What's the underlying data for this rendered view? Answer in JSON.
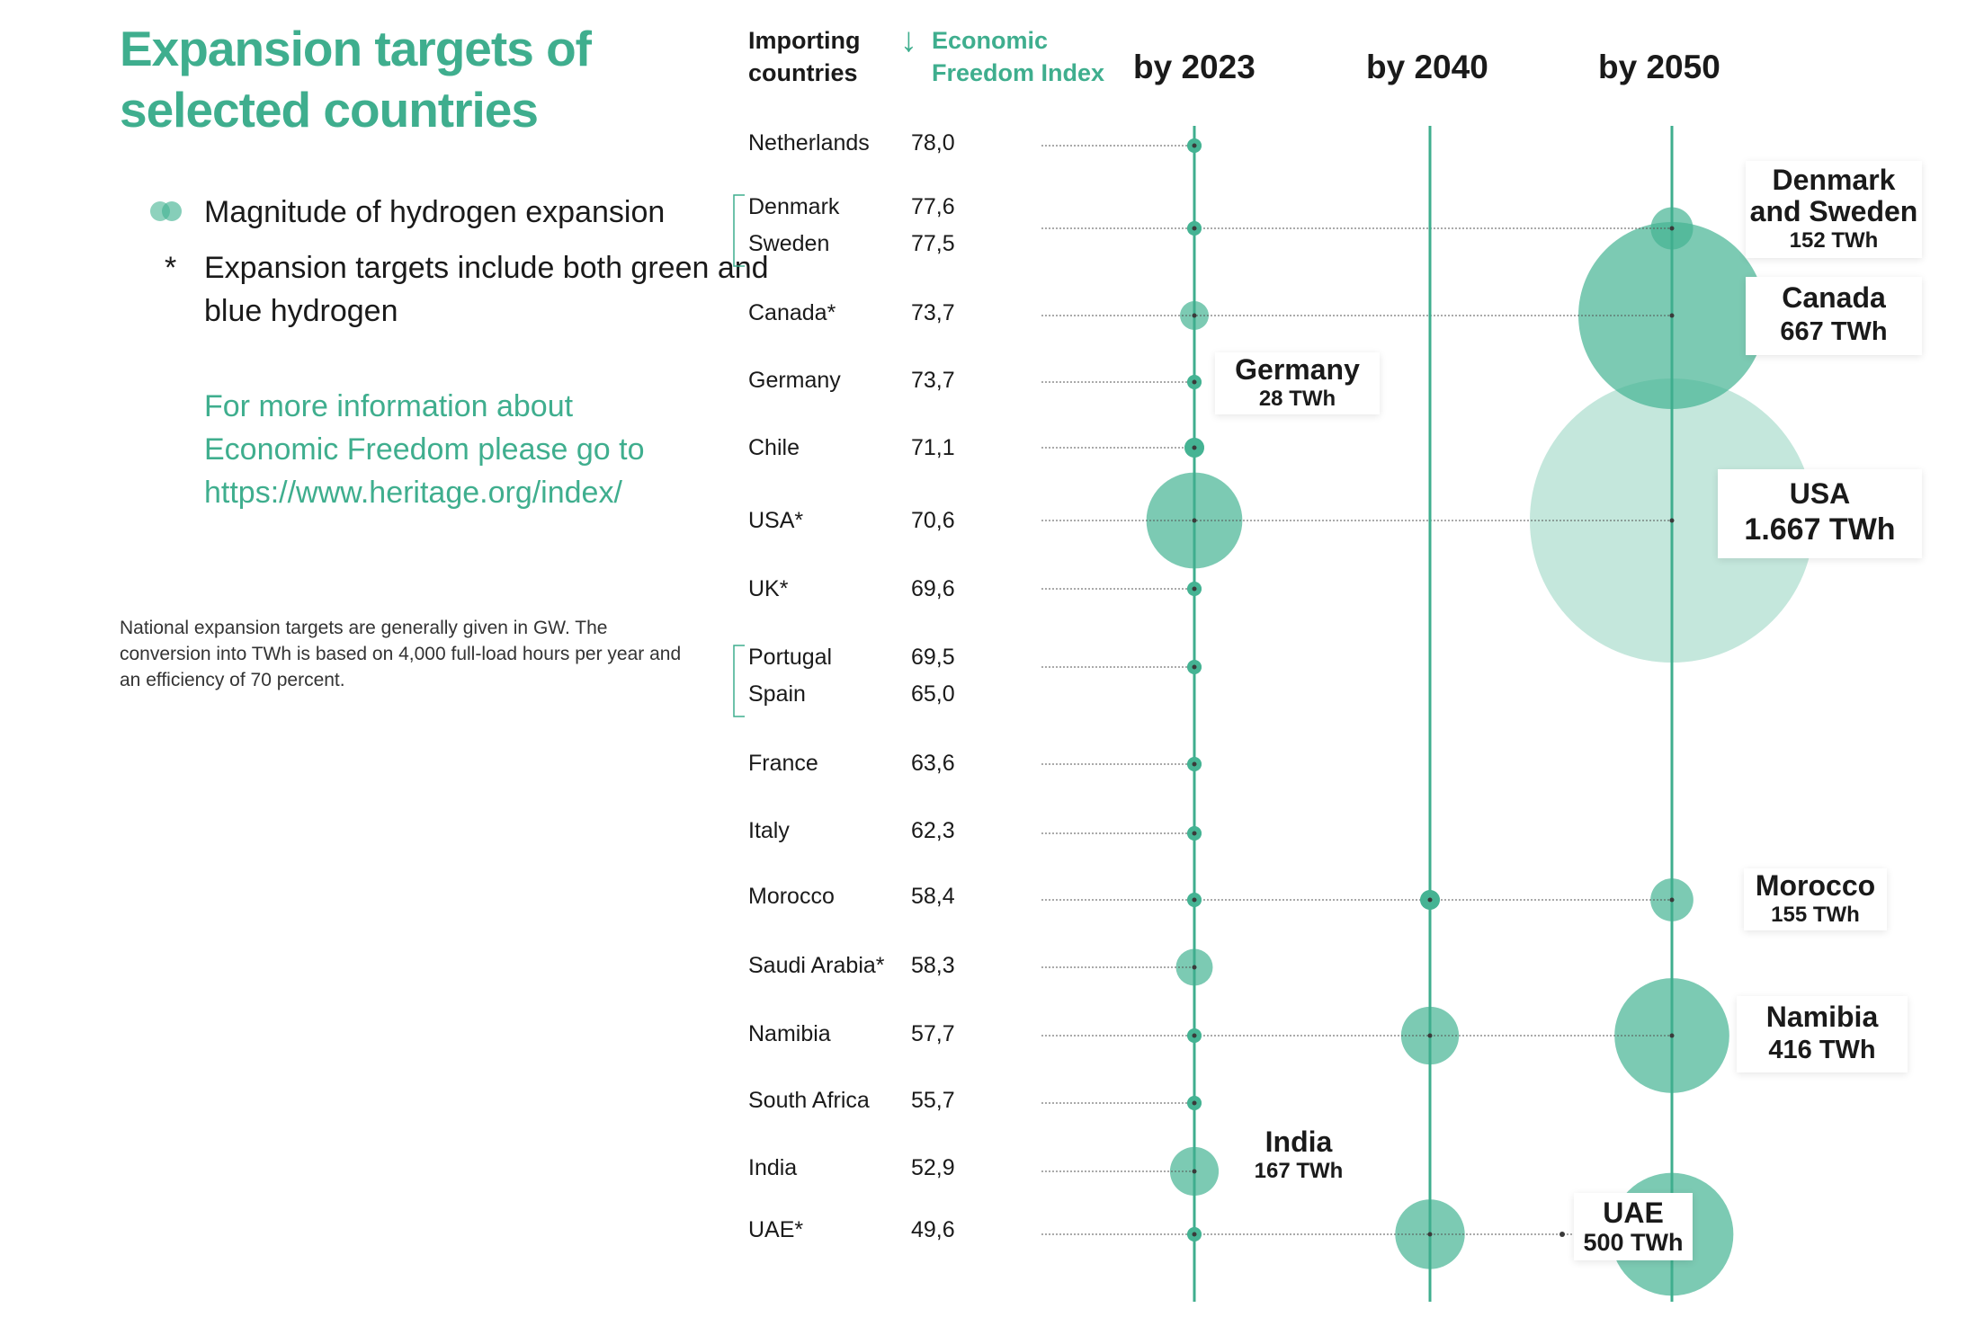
{
  "title": "Expansion targets of selected countries",
  "legend": {
    "magnitude": "Magnitude of hydrogen expansion",
    "asterisk_symbol": "*",
    "asterisk": "Expansion targets include both green and blue hydrogen"
  },
  "info_text": "For more information about Economic Freedom please go to https://www.heritage.org/index/",
  "note": "National expansion targets are generally given in GW. The conversion into TWh is based on 4,000 full-load hours per year and an efficiency of 70 percent.",
  "colors": {
    "accent": "#3fae8e",
    "bubble": "#45b393",
    "bubble_light": "#c4e7dc"
  },
  "headers": {
    "importing": "Importing countries",
    "arrow": "↓",
    "index": "Economic Freedom Index",
    "years": [
      "by 2023",
      "by 2040",
      "by 2050"
    ]
  },
  "chart_data": {
    "type": "bubble",
    "x_categories": [
      "by 2023",
      "by 2040",
      "by 2050"
    ],
    "rows": [
      {
        "country": "Netherlands",
        "index": "78,0"
      },
      {
        "country": "Denmark",
        "index": "77,6",
        "group": "Denmark and Sweden"
      },
      {
        "country": "Sweden",
        "index": "77,5",
        "group": "Denmark and Sweden"
      },
      {
        "country": "Canada*",
        "index": "73,7"
      },
      {
        "country": "Germany",
        "index": "73,7"
      },
      {
        "country": "Chile",
        "index": "71,1"
      },
      {
        "country": "USA*",
        "index": "70,6"
      },
      {
        "country": "UK*",
        "index": "69,6"
      },
      {
        "country": "Portugal",
        "index": "69,5",
        "group": "Portugal and Spain"
      },
      {
        "country": "Spain",
        "index": "65,0",
        "group": "Portugal and Spain"
      },
      {
        "country": "France",
        "index": "63,6"
      },
      {
        "country": "Italy",
        "index": "62,3"
      },
      {
        "country": "Morocco",
        "index": "58,4"
      },
      {
        "country": "Saudi Arabia*",
        "index": "58,3"
      },
      {
        "country": "Namibia",
        "index": "57,7"
      },
      {
        "country": "South Africa",
        "index": "55,7"
      },
      {
        "country": "India",
        "index": "52,9"
      },
      {
        "country": "UAE*",
        "index": "49,6"
      }
    ],
    "bubbles": [
      {
        "row": 0,
        "year": "by 2023",
        "twh": 0.1
      },
      {
        "row": 1,
        "year": "by 2023",
        "twh": 0.3
      },
      {
        "row": 3,
        "year": "by 2023",
        "twh": 17
      },
      {
        "row": 4,
        "year": "by 2023",
        "twh": 2
      },
      {
        "row": 5,
        "year": "by 2023",
        "twh": 8
      },
      {
        "row": 6,
        "year": "by 2023",
        "twh": 190
      },
      {
        "row": 7,
        "year": "by 2023",
        "twh": 1
      },
      {
        "row": 8,
        "year": "by 2023",
        "twh": 1.2
      },
      {
        "row": 10,
        "year": "by 2023",
        "twh": 1
      },
      {
        "row": 11,
        "year": "by 2023",
        "twh": 0.5
      },
      {
        "row": 12,
        "year": "by 2023",
        "twh": 0.3
      },
      {
        "row": 13,
        "year": "by 2023",
        "twh": 28
      },
      {
        "row": 14,
        "year": "by 2023",
        "twh": 4
      },
      {
        "row": 15,
        "year": "by 2023",
        "twh": 0.5
      },
      {
        "row": 16,
        "year": "by 2023",
        "twh": 49
      },
      {
        "row": 17,
        "year": "by 2023",
        "twh": 3
      },
      {
        "row": 12,
        "year": "by 2040",
        "twh": 8
      },
      {
        "row": 14,
        "year": "by 2040",
        "twh": 69
      },
      {
        "row": 17,
        "year": "by 2040",
        "twh": 100
      },
      {
        "row": 1,
        "year": "by 2050",
        "twh": 37
      },
      {
        "row": 3,
        "year": "by 2050",
        "twh": 722
      },
      {
        "row": 6,
        "year": "by 2050",
        "twh": 1667
      },
      {
        "row": 12,
        "year": "by 2050",
        "twh": 38
      },
      {
        "row": 14,
        "year": "by 2050",
        "twh": 272
      },
      {
        "row": 17,
        "year": "by 2050",
        "twh": 312
      }
    ],
    "labels": [
      {
        "name": "Denmark and Sweden",
        "value": "152 TWh"
      },
      {
        "name": "Canada",
        "value": "667 TWh"
      },
      {
        "name": "Germany",
        "value": "28 TWh"
      },
      {
        "name": "USA",
        "value": "1.667 TWh"
      },
      {
        "name": "Morocco",
        "value": "155 TWh"
      },
      {
        "name": "Namibia",
        "value": "416 TWh"
      },
      {
        "name": "India",
        "value": "167 TWh"
      },
      {
        "name": "UAE",
        "value": "500 TWh"
      }
    ]
  }
}
